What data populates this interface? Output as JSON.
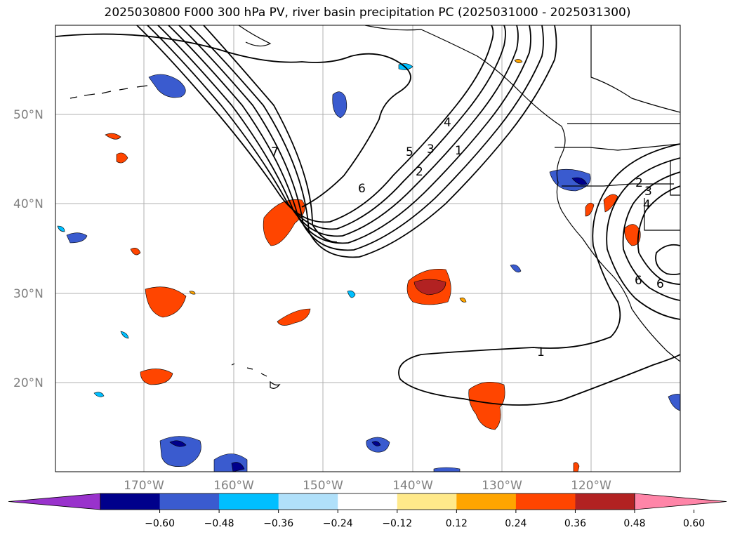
{
  "title": "2025030800 F000 300 hPa PV, river basin precipitation PC (2025031000 - 2025031300)",
  "lat_labels": [
    "50°N",
    "40°N",
    "30°N",
    "20°N"
  ],
  "lon_labels": [
    "170°W",
    "160°W",
    "150°W",
    "140°W",
    "130°W",
    "120°W"
  ],
  "colorbar": {
    "colors": [
      "#9932cc",
      "#00008b",
      "#3a5bcf",
      "#00bfff",
      "#b0e0fa",
      "#ffffff",
      "#ffe98a",
      "#ffa500",
      "#ff4500",
      "#b22222",
      "#ff85a8"
    ],
    "tick_labels": [
      "−0.60",
      "−0.48",
      "−0.36",
      "−0.24",
      "−0.12",
      "0.12",
      "0.24",
      "0.36",
      "0.48",
      "0.60"
    ]
  },
  "pv_contour_labels": [
    "7",
    "6",
    "5",
    "4",
    "3",
    "2",
    "1",
    "1",
    "2",
    "3",
    "4",
    "6",
    "6"
  ]
}
